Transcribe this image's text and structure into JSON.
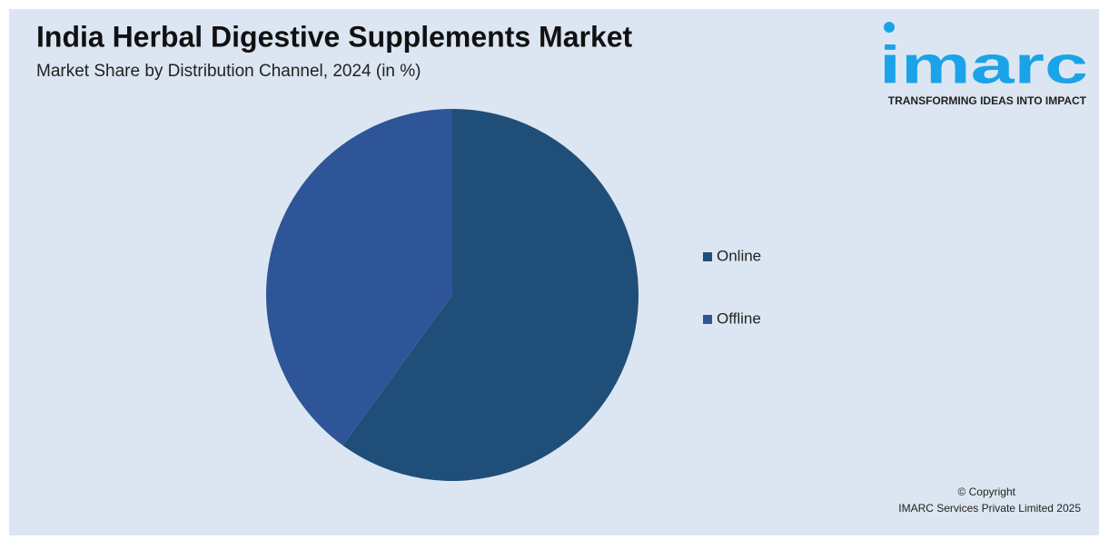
{
  "chart_data": {
    "type": "pie",
    "title": "India Herbal Digestive Supplements Market",
    "subtitle": "Market Share by Distribution Channel, 2024 (in %)",
    "categories": [
      "Online",
      "Offline"
    ],
    "values": [
      60,
      40
    ],
    "colors": [
      "#1f4e79",
      "#2e5597"
    ],
    "legend": "right"
  },
  "logo": {
    "name": "imarc",
    "tagline": "TRANSFORMING IDEAS INTO IMPACT"
  },
  "footer": {
    "copyright": "© Copyright",
    "company": "IMARC Services Private Limited 2025"
  }
}
